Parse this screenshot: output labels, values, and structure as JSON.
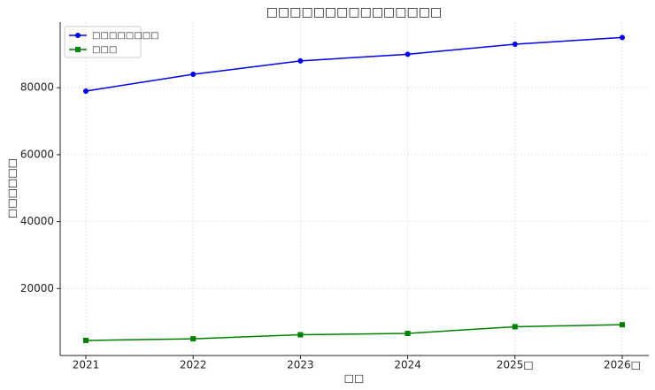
{
  "chart_data": {
    "type": "line",
    "title": "□□□□□□□□□□□□□□□",
    "x_label": "□□",
    "y_label": "□□□□□□",
    "categories": [
      "2021",
      "2022",
      "2023",
      "2024",
      "2025□",
      "2026□"
    ],
    "series": [
      {
        "name": "□□□□□□□□",
        "color": "#0000ee",
        "marker": "circle",
        "values": [
          79000,
          84000,
          88000,
          90000,
          93000,
          95000
        ]
      },
      {
        "name": "□□□",
        "color": "#008000",
        "marker": "square",
        "values": [
          4500,
          5000,
          6200,
          6600,
          8600,
          9200
        ]
      }
    ],
    "ylim": [
      0,
      99600
    ],
    "yticks": [
      20000,
      40000,
      60000,
      80000
    ],
    "grid": true,
    "legend": "upper left"
  }
}
